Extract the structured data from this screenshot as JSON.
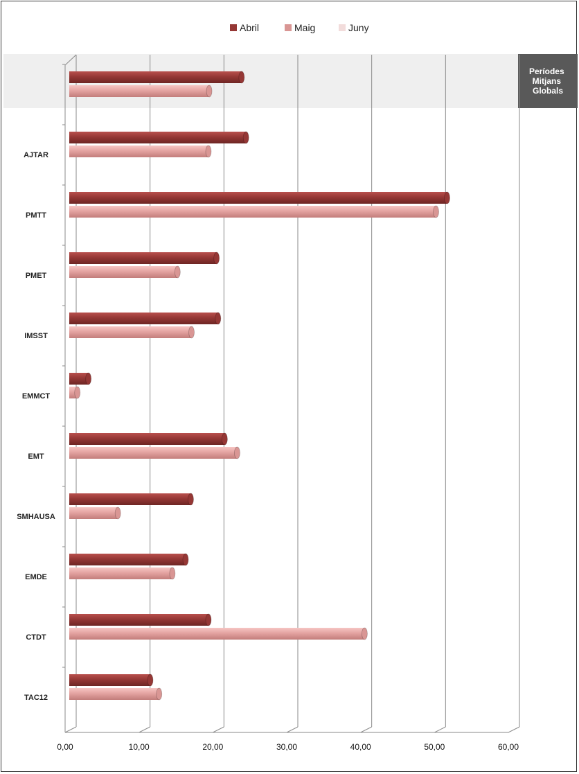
{
  "chart_data": {
    "type": "bar",
    "orientation": "horizontal",
    "title": "",
    "xlabel": "",
    "ylabel": "",
    "xlim": [
      0,
      60
    ],
    "x_ticks": [
      "0,00",
      "10,00",
      "20,00",
      "30,00",
      "40,00",
      "50,00",
      "60,00"
    ],
    "grid": true,
    "legend_position": "top",
    "highlight_label": "Períodes Mitjans Globals",
    "categories": [
      "",
      "AJTAR",
      "PMTT",
      "PMET",
      "IMSST",
      "EMMCT",
      "EMT",
      "SMHAUSA",
      "EMDE",
      "CTDT",
      "TAC12"
    ],
    "series": [
      {
        "name": "Abril",
        "color": "#953735",
        "values": [
          23.4,
          24.0,
          51.3,
          20.0,
          20.2,
          2.6,
          21.1,
          16.5,
          15.8,
          18.9,
          11.0
        ]
      },
      {
        "name": "Maig",
        "color": "#D99694",
        "values": [
          19.0,
          18.9,
          49.8,
          14.7,
          16.6,
          1.1,
          22.8,
          6.6,
          14.0,
          40.1,
          12.2
        ]
      },
      {
        "name": "Juny",
        "color": "#F2DCDB",
        "values": [
          0,
          0,
          0,
          0,
          0,
          0,
          0,
          0,
          0,
          0,
          0
        ]
      }
    ]
  }
}
